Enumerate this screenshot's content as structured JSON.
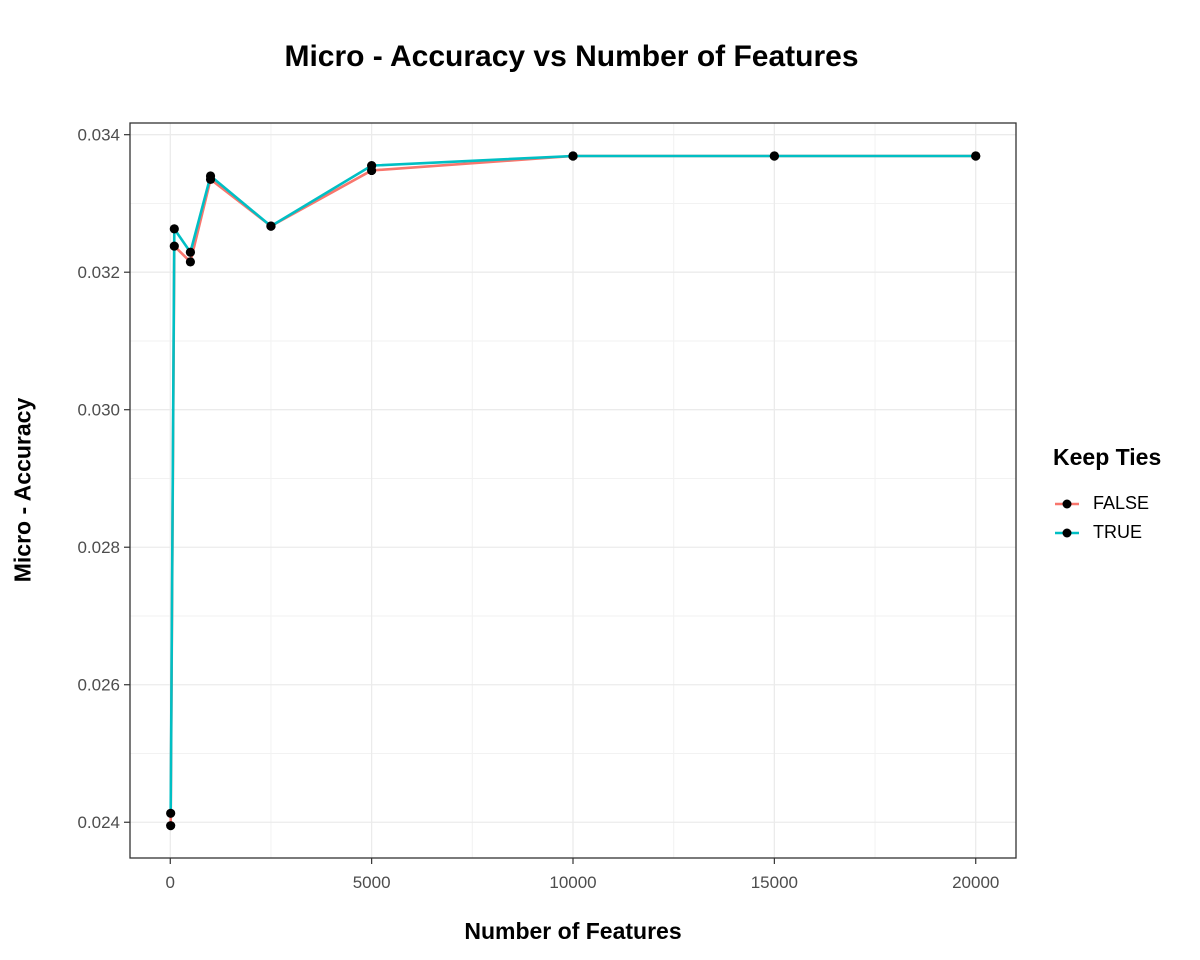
{
  "chart_data": {
    "type": "line",
    "title": "Micro - Accuracy vs Number of Features",
    "xlabel": "Number of Features",
    "ylabel": "Micro - Accuracy",
    "xlim": [
      -1000,
      21000
    ],
    "ylim": [
      0.02348,
      0.03417
    ],
    "x_ticks": [
      0,
      5000,
      10000,
      15000,
      20000
    ],
    "x_tick_labels": [
      "0",
      "5000",
      "10000",
      "15000",
      "20000"
    ],
    "y_ticks": [
      0.024,
      0.026,
      0.028,
      0.03,
      0.032,
      0.034
    ],
    "y_tick_labels": [
      "0.024",
      "0.026",
      "0.028",
      "0.030",
      "0.032",
      "0.034"
    ],
    "grid": true,
    "legend_title": "Keep Ties",
    "legend_position": "right",
    "series": [
      {
        "name": "FALSE",
        "color": "#F8766D",
        "x": [
          10,
          100,
          500,
          1000,
          2500,
          5000,
          10000,
          15000,
          20000
        ],
        "y": [
          0.02395,
          0.03238,
          0.03215,
          0.03335,
          0.03267,
          0.03348,
          0.03369,
          0.03369,
          0.03369
        ]
      },
      {
        "name": "TRUE",
        "color": "#00BFC4",
        "x": [
          10,
          100,
          500,
          1000,
          2500,
          5000,
          10000,
          15000,
          20000
        ],
        "y": [
          0.02413,
          0.03263,
          0.03229,
          0.0334,
          0.03267,
          0.03355,
          0.03369,
          0.03369,
          0.03369
        ]
      }
    ]
  }
}
